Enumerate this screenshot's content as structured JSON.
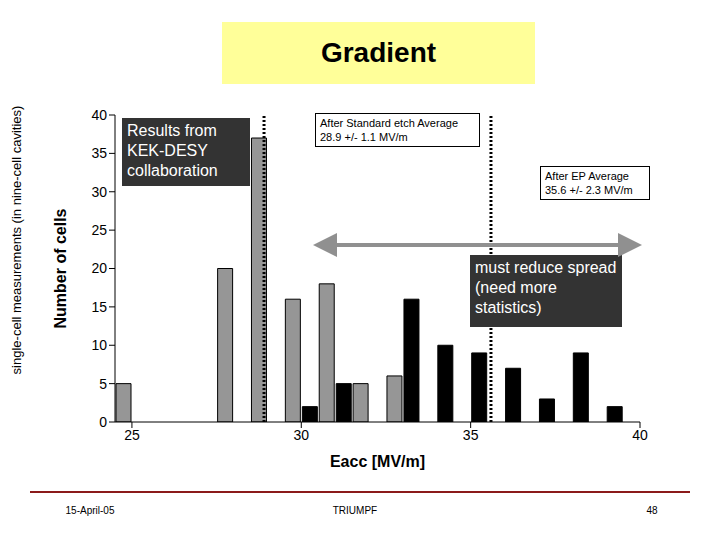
{
  "slide": {
    "title": "Gradient",
    "side_label": "single-cell measurements (in nine-cell cavities)",
    "footer": {
      "date": "15-April-05",
      "org": "TRIUMPF",
      "page": "48"
    }
  },
  "chart_data": {
    "type": "bar",
    "x_label": "Eacc [MV/m]",
    "y_label": "Number of cells",
    "x": [
      25,
      26,
      27,
      28,
      29,
      30,
      31,
      32,
      33,
      34,
      35,
      36,
      37,
      38,
      39
    ],
    "xlim": [
      24.5,
      40
    ],
    "xticks": [
      25,
      30,
      35,
      40
    ],
    "ylim": [
      0,
      40
    ],
    "yticks": [
      0,
      5,
      10,
      15,
      20,
      25,
      30,
      35,
      40
    ],
    "grid": false,
    "series": [
      {
        "color": "#969696",
        "values": [
          5,
          0,
          0,
          20,
          37,
          16,
          18,
          5,
          6,
          0,
          0,
          0,
          0,
          0,
          0
        ]
      },
      {
        "color": "#000000",
        "values": [
          0,
          0,
          0,
          0,
          0,
          2,
          5,
          0,
          16,
          10,
          9,
          7,
          3,
          9,
          2
        ]
      }
    ],
    "averages": [
      {
        "value": 28.9,
        "label": [
          "After Standard etch Average",
          "28.9 +/- 1.1 MV/m"
        ]
      },
      {
        "value": 35.6,
        "label": [
          "After EP Average",
          "35.6 +/- 2.3 MV/m"
        ]
      }
    ],
    "annotations": [
      "Results from KEK-DESY collaboration",
      "must reduce spread (need more statistics)"
    ]
  }
}
